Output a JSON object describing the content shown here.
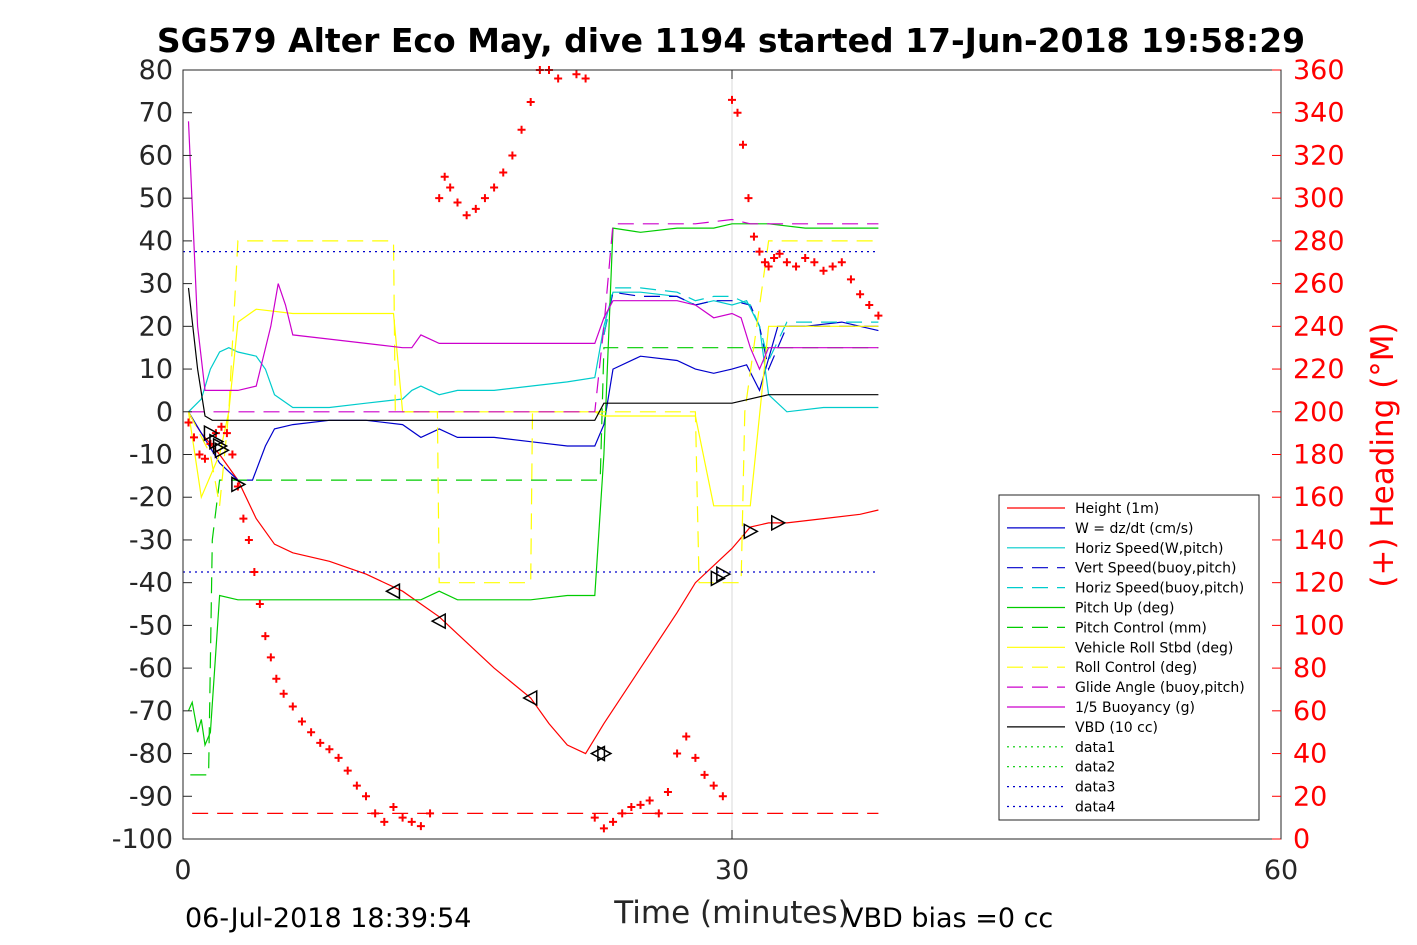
{
  "chart_data": {
    "type": "line",
    "title": "SG579 Alter Eco May, dive 1194 started 17-Jun-2018 19:58:29",
    "xlabel": "Time (minutes)",
    "ylabel_right": "(+) Heading (°M)",
    "xlim": [
      0,
      60
    ],
    "ylim_left": [
      -100,
      80
    ],
    "ylim_right": [
      0,
      360
    ],
    "x_ticks": [
      "0",
      "30",
      "60"
    ],
    "x_tick_values": [
      0,
      30,
      60
    ],
    "y_ticks_left": [
      "80",
      "70",
      "60",
      "50",
      "40",
      "30",
      "20",
      "10",
      "0",
      "-10",
      "-20",
      "-30",
      "-40",
      "-50",
      "-60",
      "-70",
      "-80",
      "-90",
      "-100"
    ],
    "y_tick_values_left": [
      80,
      70,
      60,
      50,
      40,
      30,
      20,
      10,
      0,
      -10,
      -20,
      -30,
      -40,
      -50,
      -60,
      -70,
      -80,
      -90,
      -100
    ],
    "y_ticks_right": [
      "360",
      "340",
      "320",
      "300",
      "280",
      "260",
      "240",
      "220",
      "200",
      "180",
      "160",
      "140",
      "120",
      "100",
      "80",
      "60",
      "40",
      "20",
      "0"
    ],
    "y_tick_values_right": [
      360,
      340,
      320,
      300,
      280,
      260,
      240,
      220,
      200,
      180,
      160,
      140,
      120,
      100,
      80,
      60,
      40,
      20,
      0
    ],
    "grid": "x-at-30",
    "legend_position": "bottom-right",
    "footer_left": "06-Jul-2018 18:39:54",
    "footer_right": "VBD bias =0 cc",
    "series": [
      {
        "name": "Height (1m)",
        "color": "#ff0000",
        "dash": "solid",
        "x": [
          0.4,
          1,
          2,
          3,
          4,
          5,
          6,
          8,
          10,
          12,
          13,
          14,
          15,
          17,
          19,
          20,
          21,
          22,
          23,
          25,
          27,
          28,
          29,
          30,
          31,
          32,
          33,
          35,
          37,
          38
        ],
        "y": [
          -1,
          -5,
          -10,
          -16,
          -25,
          -31,
          -33,
          -35,
          -38,
          -42,
          -45,
          -48,
          -52,
          -60,
          -67,
          -73,
          -78,
          -80,
          -73,
          -60,
          -47,
          -40,
          -36,
          -32,
          -27,
          -26,
          -26,
          -25,
          -24,
          -23
        ]
      },
      {
        "name": "W = dz/dt (cm/s)",
        "color": "#0000cc",
        "dash": "solid",
        "x": [
          0.3,
          1,
          2,
          3,
          3.8,
          4.5,
          5,
          6,
          8,
          10,
          12,
          13,
          14,
          15,
          17,
          19,
          21,
          22.5,
          23,
          23.5,
          25,
          27,
          28,
          29,
          30,
          30.8,
          31.5,
          32.5,
          34,
          36,
          38
        ],
        "y": [
          0,
          -5,
          -12,
          -16,
          -16,
          -8,
          -4,
          -3,
          -2,
          -2,
          -3,
          -6,
          -4,
          -6,
          -6,
          -7,
          -8,
          -8,
          -3,
          10,
          13,
          12,
          10,
          9,
          10,
          11,
          5,
          20,
          20,
          21,
          19
        ]
      },
      {
        "name": "Horiz Speed(W,pitch)",
        "color": "#00cccc",
        "dash": "solid",
        "x": [
          0.3,
          1,
          1.5,
          2,
          2.5,
          3,
          4,
          4.5,
          5,
          6,
          8,
          10,
          12,
          12.5,
          13,
          14,
          15,
          17,
          19,
          21,
          22.5,
          23,
          23.5,
          25,
          27,
          28,
          29,
          30,
          30.8,
          31.5,
          32,
          33,
          35,
          37,
          38
        ],
        "y": [
          0,
          3,
          10,
          14,
          15,
          14,
          13,
          10,
          4,
          1,
          1,
          2,
          3,
          5,
          6,
          4,
          5,
          5,
          6,
          7,
          8,
          20,
          28,
          28,
          27,
          25,
          26,
          25,
          26,
          20,
          4,
          0,
          1,
          1,
          1
        ]
      },
      {
        "name": "Vert Speed(buoy,pitch)",
        "color": "#0000cc",
        "dash": "long",
        "x": [
          23,
          23.5,
          25,
          27,
          28,
          29,
          30,
          31,
          31.5,
          32,
          33,
          35,
          37,
          38
        ],
        "y": [
          18,
          28,
          27,
          27,
          25,
          26,
          26,
          25,
          20,
          10,
          20,
          20,
          20,
          20
        ]
      },
      {
        "name": "Horiz Speed(buoy,pitch)",
        "color": "#00cccc",
        "dash": "long",
        "x": [
          23,
          23.5,
          25,
          27,
          28,
          29,
          30,
          31,
          31.5,
          32,
          33,
          35,
          37,
          38
        ],
        "y": [
          18,
          29,
          29,
          28,
          26,
          27,
          27,
          25,
          20,
          12,
          21,
          21,
          21,
          21
        ]
      },
      {
        "name": "Pitch Up (deg)",
        "color": "#00cc00",
        "dash": "solid",
        "x": [
          0.3,
          0.5,
          0.8,
          1,
          1.2,
          1.5,
          2,
          3,
          5,
          8,
          10,
          12,
          13,
          14,
          15,
          17,
          19,
          21,
          22.5,
          23,
          23.5,
          25,
          27,
          28,
          29,
          30,
          31,
          32,
          34,
          36,
          38
        ],
        "y": [
          -70,
          -68,
          -75,
          -72,
          -78,
          -75,
          -43,
          -44,
          -44,
          -44,
          -44,
          -44,
          -44,
          -42,
          -44,
          -44,
          -44,
          -43,
          -43,
          -10,
          43,
          42,
          43,
          43,
          43,
          44,
          44,
          44,
          43,
          43,
          43
        ]
      },
      {
        "name": "Pitch Control (mm)",
        "color": "#00cc00",
        "dash": "long",
        "x": [
          0.4,
          1.3,
          1.4,
          1.6,
          2,
          5,
          10,
          13,
          15,
          19,
          21,
          22.5,
          22.8,
          23,
          38
        ],
        "y": [
          -85,
          -85,
          -85,
          -30,
          -16,
          -16,
          -16,
          -16,
          -16,
          -16,
          -16,
          -16,
          -16,
          15,
          15
        ]
      },
      {
        "name": "Vehicle Roll Stbd (deg)",
        "color": "#ffff00",
        "dash": "solid",
        "x": [
          0.3,
          1,
          1.5,
          2,
          2.5,
          3,
          4,
          6,
          8,
          10,
          11.5,
          12,
          13,
          14,
          19,
          21,
          22.5,
          23,
          25,
          27,
          28,
          29,
          30,
          30.5,
          31,
          32,
          34,
          36,
          38
        ],
        "y": [
          0,
          -20,
          -15,
          -10,
          0,
          21,
          24,
          23,
          23,
          23,
          23,
          0,
          0,
          0,
          0,
          0,
          0,
          -1,
          -1,
          -1,
          -1,
          -22,
          -22,
          -22,
          -22,
          20,
          20,
          20,
          20
        ]
      },
      {
        "name": "Roll Control (deg)",
        "color": "#ffff00",
        "dash": "long",
        "x": [
          0.3,
          1.5,
          2,
          2.5,
          3,
          11.5,
          11.6,
          13.9,
          14,
          19,
          19.1,
          22.5,
          23,
          28,
          28.2,
          30.5,
          30.7,
          32,
          38
        ],
        "y": [
          0,
          -10,
          -22,
          0,
          40,
          40,
          0,
          0,
          -40,
          -40,
          0,
          0,
          0,
          0,
          -40,
          -40,
          0,
          40,
          40
        ]
      },
      {
        "name": "Glide Angle (buoy,pitch)",
        "color": "#cc00cc",
        "dash": "long",
        "x": [
          0.3,
          2,
          5,
          10,
          15,
          20,
          22.5,
          23,
          23.5,
          25,
          28,
          30,
          31,
          32,
          34,
          36,
          38
        ],
        "y": [
          0,
          0,
          0,
          0,
          0,
          0,
          0,
          20,
          44,
          44,
          44,
          45,
          44,
          44,
          44,
          44,
          44
        ]
      },
      {
        "name": "1/5 Buoyancy (g)",
        "color": "#cc00cc",
        "dash": "solid",
        "x": [
          0.3,
          0.8,
          1.2,
          1.6,
          2,
          3,
          4,
          4.8,
          5.2,
          5.6,
          6,
          8,
          10,
          12,
          12.5,
          13,
          14,
          15,
          17,
          19,
          21,
          22.5,
          23,
          23.5,
          25,
          27,
          28,
          29,
          30,
          30.5,
          31,
          31.5,
          32,
          33,
          35,
          37,
          38
        ],
        "y": [
          68,
          20,
          5,
          5,
          5,
          5,
          6,
          20,
          30,
          25,
          18,
          17,
          16,
          15,
          15,
          18,
          16,
          16,
          16,
          16,
          16,
          16,
          22,
          26,
          26,
          26,
          25,
          22,
          23,
          22,
          15,
          10,
          15,
          15,
          15,
          15,
          15
        ]
      },
      {
        "name": "VBD (10 cc)",
        "color": "#000000",
        "dash": "solid",
        "x": [
          0.3,
          0.8,
          1.2,
          1.6,
          2,
          5,
          10,
          15,
          20,
          22.5,
          23,
          23.5,
          25,
          30,
          32,
          34,
          38
        ],
        "y": [
          29,
          10,
          -1,
          -2,
          -2,
          -2,
          -2,
          -2,
          -2,
          -2,
          2,
          2,
          2,
          2,
          4,
          4,
          4
        ]
      },
      {
        "name": "data1",
        "color": "#00cc00",
        "dash": "dotted",
        "x": [],
        "y": []
      },
      {
        "name": "data2",
        "color": "#00cc00",
        "dash": "dotted",
        "x": [],
        "y": []
      },
      {
        "name": "data3",
        "color": "#0000cc",
        "dash": "dotted",
        "x": [
          0,
          38
        ],
        "y": [
          37.5,
          37.5
        ]
      },
      {
        "name": "data4",
        "color": "#0000cc",
        "dash": "dotted",
        "x": [
          0,
          38
        ],
        "y": [
          -37.5,
          -37.5
        ]
      }
    ],
    "reference_lines": [
      {
        "color": "#ff0000",
        "dash": "long",
        "y": -94,
        "x": [
          0.5,
          38
        ]
      }
    ],
    "heading": {
      "axis": "right",
      "color": "#ff0000",
      "marker": "+",
      "x": [
        0.3,
        0.6,
        0.9,
        1.2,
        1.5,
        1.8,
        2.1,
        2.4,
        2.7,
        3.0,
        3.3,
        3.6,
        3.9,
        4.2,
        4.5,
        4.8,
        5.1,
        5.5,
        6,
        6.5,
        7,
        7.5,
        8,
        8.5,
        9,
        9.5,
        10,
        10.5,
        11,
        11.5,
        12,
        12.5,
        13,
        13.5,
        14,
        14.3,
        14.6,
        15,
        15.5,
        16,
        16.5,
        17,
        17.5,
        18,
        18.5,
        19,
        19.5,
        20,
        20.5,
        21,
        21.5,
        22,
        22.5,
        23,
        23.5,
        24,
        24.5,
        25,
        25.5,
        26,
        26.5,
        27,
        27.5,
        28,
        28.5,
        29,
        29.5,
        30,
        30.3,
        30.6,
        30.9,
        31.2,
        31.5,
        31.8,
        32,
        32.3,
        32.6,
        33,
        33.5,
        34,
        34.5,
        35,
        35.5,
        36,
        36.5,
        37,
        37.5,
        38
      ],
      "y": [
        195,
        188,
        180,
        178,
        185,
        190,
        193,
        190,
        180,
        165,
        150,
        140,
        125,
        110,
        95,
        85,
        75,
        68,
        62,
        55,
        50,
        45,
        42,
        38,
        32,
        25,
        20,
        12,
        8,
        15,
        10,
        8,
        6,
        12,
        300,
        310,
        305,
        298,
        292,
        295,
        300,
        305,
        312,
        320,
        332,
        345,
        360,
        360,
        356,
        362,
        358,
        356,
        10,
        5,
        8,
        12,
        15,
        16,
        18,
        12,
        22,
        40,
        48,
        38,
        30,
        25,
        20,
        346,
        340,
        325,
        300,
        282,
        275,
        270,
        268,
        272,
        274,
        270,
        268,
        272,
        270,
        266,
        268,
        270,
        262,
        255,
        250,
        245
      ]
    },
    "triangles": {
      "x": [
        1.5,
        1.8,
        2.0,
        2.1,
        3.0,
        11.5,
        14,
        19,
        22.7,
        23.0,
        29.2,
        29.5,
        31,
        32.5
      ],
      "y": [
        -5,
        -7,
        -8,
        -9,
        -17,
        -42,
        -49,
        -67,
        -80,
        -80,
        -39,
        -38,
        -28,
        -26
      ]
    }
  }
}
